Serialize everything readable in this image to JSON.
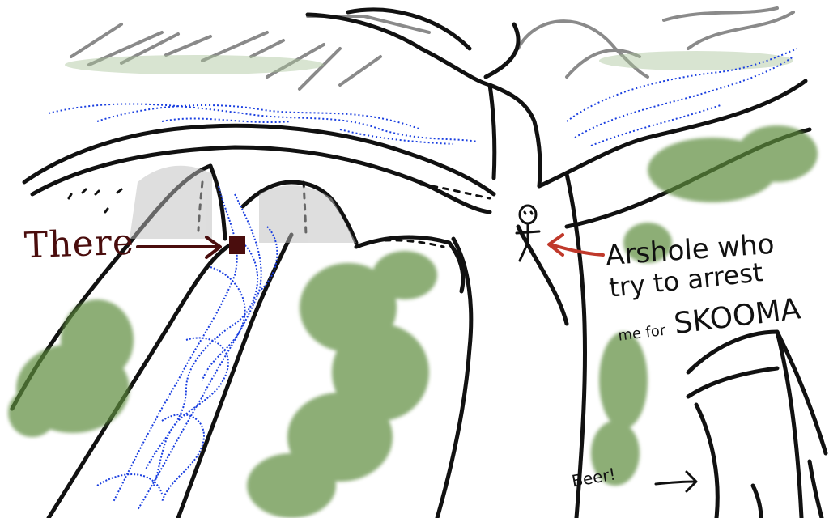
{
  "drawing": {
    "labels": {
      "there": "There",
      "arsehole_line1": "Arshole who",
      "arsehole_line2": "try to arrest",
      "arsehole_line3_prefix": "me for",
      "arsehole_line3_emph": "SKOOMA",
      "beer": "Beer!"
    },
    "colors": {
      "ink": "#111111",
      "there_ink": "#4a0d0d",
      "pointer_arrow": "#c0392b",
      "water": "#1a3fe0",
      "foliage": "#5d8c3d",
      "sky_streaks": "#8a8a8a",
      "target_box": "#4a0d0d"
    }
  }
}
